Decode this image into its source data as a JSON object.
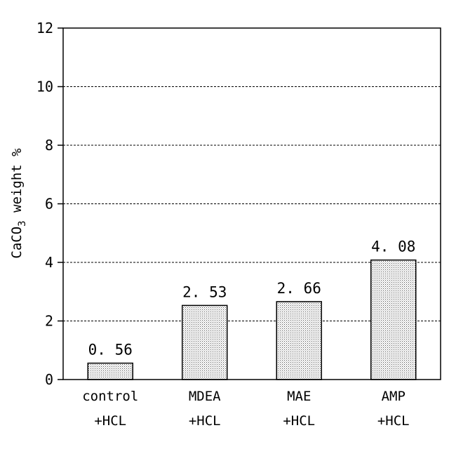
{
  "chart_data": {
    "type": "bar",
    "categories": [
      "control\n+HCL",
      "MDEA\n+HCL",
      "MAE\n+HCL",
      "AMP\n+HCL"
    ],
    "category_lines": [
      [
        "control",
        "+HCL"
      ],
      [
        "MDEA",
        "+HCL"
      ],
      [
        "MAE",
        "+HCL"
      ],
      [
        "AMP",
        "+HCL"
      ]
    ],
    "values": [
      0.56,
      2.53,
      2.66,
      4.08
    ],
    "data_labels": [
      "0. 56",
      "2. 53",
      "2. 66",
      "4. 08"
    ],
    "title": "",
    "xlabel": "",
    "ylabel": "CaCO3 weight %",
    "ylabel_parts": {
      "main": "CaCO",
      "subscript": "3",
      "rest": " weight %"
    },
    "ylim": [
      0,
      12
    ],
    "yticks": [
      0,
      2,
      4,
      6,
      8,
      10,
      12
    ],
    "grid": "horizontal dashed",
    "bar_fill": "dotted light gray"
  }
}
